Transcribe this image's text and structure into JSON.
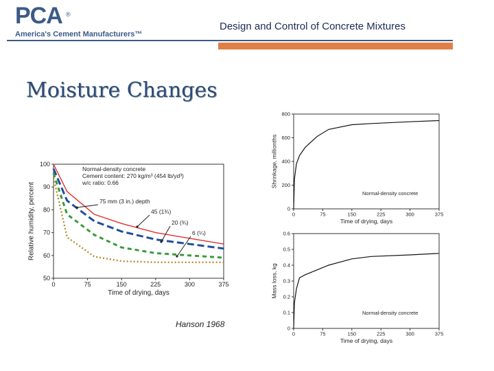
{
  "header": {
    "logo_text": "PCA",
    "logo_reg": "®",
    "logo_subtitle": "America's Cement Manufacturers™",
    "title": "Design and Control of Concrete Mixtures"
  },
  "slide": {
    "title": "Moisture Changes",
    "caption": "Hanson 1968"
  },
  "chart_data": [
    {
      "type": "line",
      "ylabel": "Relative humidity, percent",
      "xlabel": "Time of drying, days",
      "xlim": [
        0,
        375
      ],
      "ylim": [
        50,
        100
      ],
      "xticks": [
        "0",
        "75",
        "150",
        "225",
        "300",
        "375"
      ],
      "yticks": [
        "50",
        "60",
        "70",
        "80",
        "90",
        "100"
      ],
      "annotation_lines": [
        "Normal-density concrete",
        "Cement content: 270 kg/m³ (454 lb/yd³)",
        "w/c ratio: 0.66"
      ],
      "series": [
        {
          "name": "75 mm (3 in.) depth",
          "color": "#e03030",
          "dash": "solid",
          "x": [
            0,
            30,
            90,
            150,
            225,
            300,
            375
          ],
          "y": [
            100,
            88,
            78,
            74,
            70,
            67.5,
            65
          ]
        },
        {
          "name": "45 (1¾)",
          "color": "#1f4e9a",
          "dash": "long",
          "x": [
            0,
            30,
            90,
            150,
            225,
            300,
            375
          ],
          "y": [
            98,
            84,
            75,
            70.5,
            67,
            65,
            63
          ]
        },
        {
          "name": "20 (¾)",
          "color": "#3a9a3a",
          "dash": "short",
          "x": [
            0,
            30,
            90,
            150,
            225,
            300,
            375
          ],
          "y": [
            96,
            78,
            69,
            63.5,
            61,
            60,
            59
          ]
        },
        {
          "name": "6 (¼)",
          "color": "#b98a2a",
          "dash": "dot",
          "x": [
            0,
            30,
            90,
            150,
            225,
            300,
            375
          ],
          "y": [
            94,
            68,
            59.5,
            57.5,
            57,
            57,
            57
          ]
        }
      ]
    },
    {
      "type": "line",
      "ylabel": "Shrinkage, millionths",
      "xlabel": "Time of drying, days",
      "xlim": [
        0,
        375
      ],
      "ylim": [
        0,
        800
      ],
      "xticks": [
        "0",
        "75",
        "150",
        "225",
        "300",
        "375"
      ],
      "yticks": [
        "0",
        "200",
        "400",
        "600",
        "800"
      ],
      "annotation": "Normal-density concrete",
      "series": [
        {
          "x": [
            0,
            2,
            7,
            15,
            30,
            60,
            90,
            150,
            200,
            300,
            375
          ],
          "y": [
            0,
            250,
            380,
            450,
            520,
            610,
            670,
            710,
            720,
            735,
            745
          ]
        }
      ]
    },
    {
      "type": "line",
      "ylabel": "Mass loss, kg",
      "xlabel": "Time of drying, days",
      "xlim": [
        0,
        375
      ],
      "ylim": [
        0,
        0.6
      ],
      "xticks": [
        "0",
        "75",
        "150",
        "225",
        "300",
        "375"
      ],
      "yticks": [
        "0",
        "0.1",
        "0.2",
        "0.3",
        "0.4",
        "0.5",
        "0.6"
      ],
      "annotation": "Normal-density concrete",
      "series": [
        {
          "x": [
            0,
            2,
            7,
            15,
            30,
            60,
            90,
            150,
            200,
            300,
            375
          ],
          "y": [
            0,
            0.16,
            0.25,
            0.32,
            0.34,
            0.37,
            0.4,
            0.44,
            0.455,
            0.465,
            0.475
          ]
        }
      ]
    }
  ]
}
